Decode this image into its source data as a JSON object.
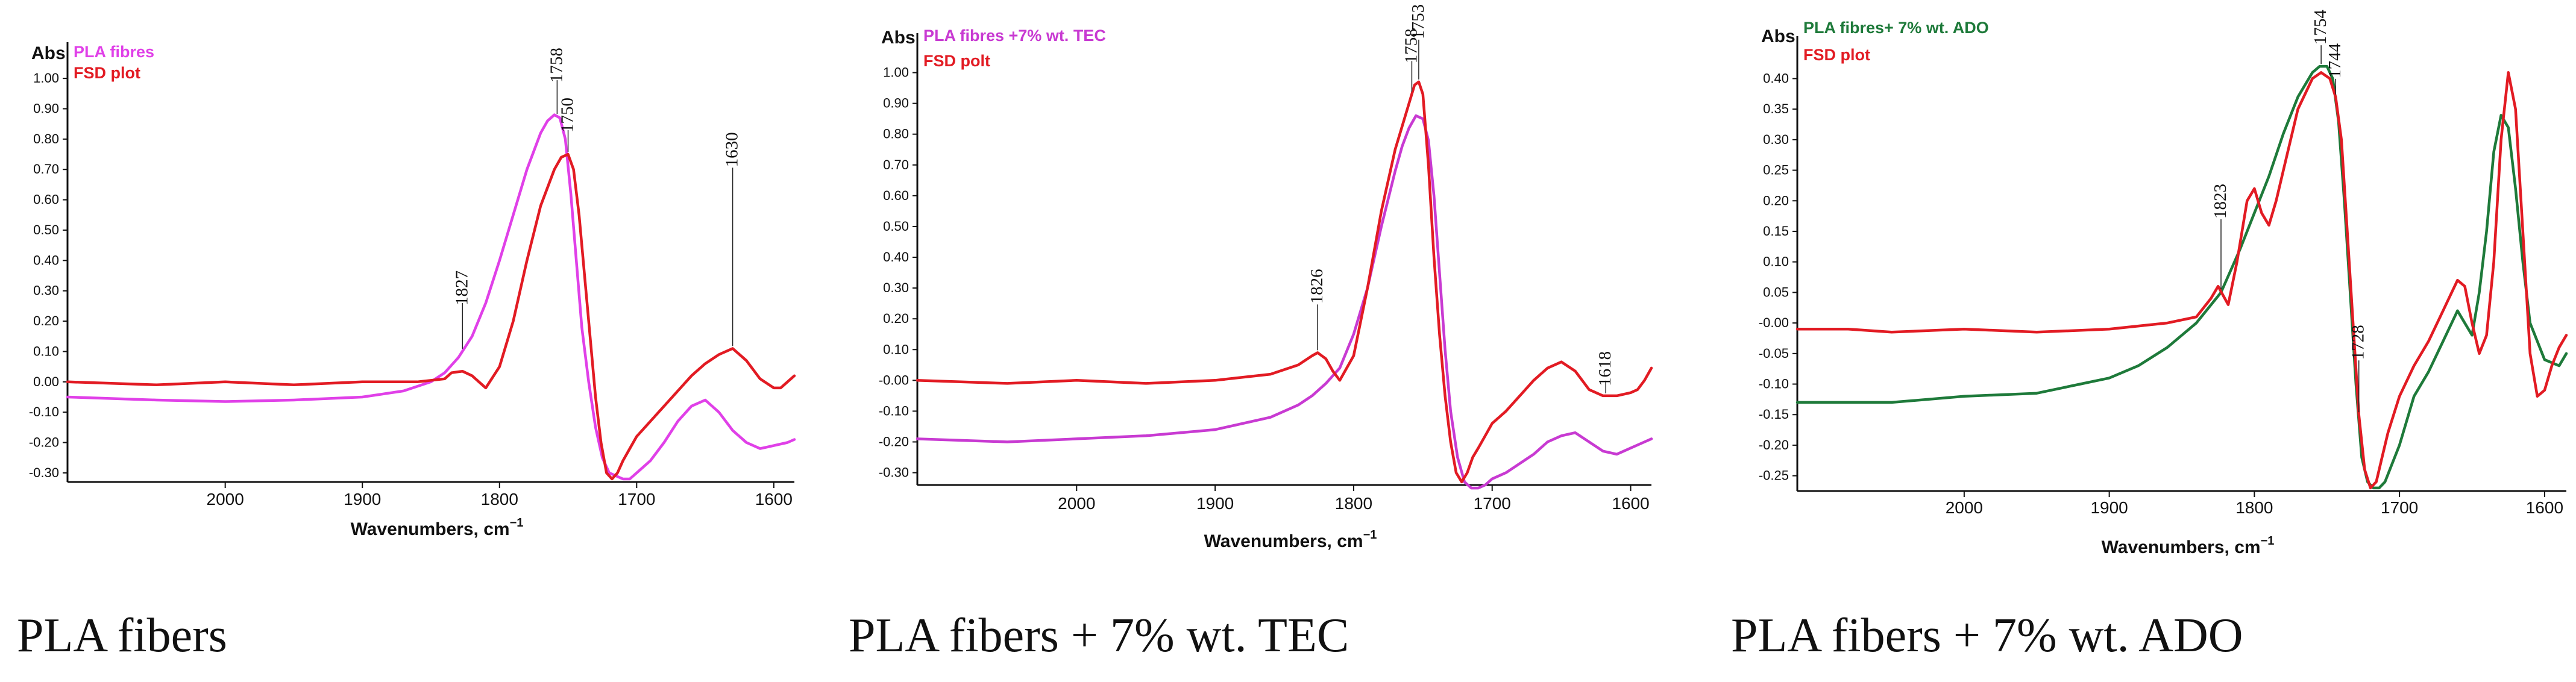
{
  "chart_data": [
    {
      "type": "line",
      "caption": "PLA fibers",
      "ylabel_short": "Abs",
      "xlabel": "Wavenumbers, cm",
      "xlabel_sup": "−1",
      "xlim": [
        2115,
        1585
      ],
      "ylim": [
        -0.33,
        1.04
      ],
      "xticks": [
        "2000",
        "1900",
        "1800",
        "1700",
        "1600"
      ],
      "yticks": [
        "1.00",
        "0.90",
        "0.80",
        "0.70",
        "0.60",
        "0.50",
        "0.40",
        "0.30",
        "0.20",
        "0.10",
        "0.00",
        "-0.10",
        "-0.20",
        "-0.30"
      ],
      "series": [
        {
          "name": "PLA fibres",
          "color": "#e040e8",
          "x": [
            2115,
            2050,
            2000,
            1950,
            1900,
            1870,
            1850,
            1840,
            1830,
            1820,
            1810,
            1800,
            1790,
            1780,
            1770,
            1765,
            1760,
            1756,
            1752,
            1748,
            1744,
            1740,
            1735,
            1730,
            1725,
            1720,
            1715,
            1710,
            1705,
            1700,
            1690,
            1680,
            1670,
            1660,
            1650,
            1640,
            1630,
            1620,
            1610,
            1600,
            1590,
            1585
          ],
          "y": [
            -0.05,
            -0.06,
            -0.065,
            -0.06,
            -0.05,
            -0.03,
            0.0,
            0.03,
            0.08,
            0.15,
            0.26,
            0.4,
            0.55,
            0.7,
            0.82,
            0.86,
            0.88,
            0.87,
            0.8,
            0.62,
            0.4,
            0.18,
            0.0,
            -0.15,
            -0.25,
            -0.3,
            -0.31,
            -0.32,
            -0.32,
            -0.3,
            -0.26,
            -0.2,
            -0.13,
            -0.08,
            -0.06,
            -0.1,
            -0.16,
            -0.2,
            -0.22,
            -0.21,
            -0.2,
            -0.19
          ]
        },
        {
          "name": "FSD plot",
          "color": "#e21b23",
          "x": [
            2115,
            2050,
            2000,
            1950,
            1900,
            1860,
            1840,
            1835,
            1827,
            1820,
            1815,
            1810,
            1800,
            1790,
            1780,
            1770,
            1760,
            1755,
            1750,
            1746,
            1742,
            1738,
            1734,
            1730,
            1726,
            1722,
            1718,
            1714,
            1710,
            1705,
            1700,
            1690,
            1680,
            1670,
            1660,
            1650,
            1640,
            1630,
            1620,
            1610,
            1600,
            1595,
            1590,
            1585
          ],
          "y": [
            0.0,
            -0.01,
            0.0,
            -0.01,
            0.0,
            0.0,
            0.01,
            0.03,
            0.035,
            0.02,
            0.0,
            -0.02,
            0.05,
            0.2,
            0.4,
            0.58,
            0.7,
            0.74,
            0.75,
            0.7,
            0.55,
            0.35,
            0.15,
            -0.05,
            -0.2,
            -0.3,
            -0.32,
            -0.3,
            -0.26,
            -0.22,
            -0.18,
            -0.13,
            -0.08,
            -0.03,
            0.02,
            0.06,
            0.09,
            0.11,
            0.07,
            0.01,
            -0.02,
            -0.02,
            0.0,
            0.02
          ]
        }
      ],
      "annotations": [
        {
          "label": "1758",
          "x": 1758
        },
        {
          "label": "1750",
          "x": 1750
        },
        {
          "label": "1630",
          "x": 1630
        },
        {
          "label": "1827",
          "x": 1827
        }
      ]
    },
    {
      "type": "line",
      "caption": "PLA fibers + 7% wt. TEC",
      "ylabel_short": "Abs",
      "xlabel": "Wavenumbers, cm",
      "xlabel_sup": "−1",
      "xlim": [
        2115,
        1585
      ],
      "ylim": [
        -0.34,
        1.05
      ],
      "xticks": [
        "2000",
        "1900",
        "1800",
        "1700",
        "1600"
      ],
      "yticks": [
        "1.00",
        "0.90",
        "0.80",
        "0.70",
        "0.60",
        "0.50",
        "0.40",
        "0.30",
        "0.20",
        "0.10",
        "-0.00",
        "-0.10",
        "-0.20",
        "-0.30"
      ],
      "series": [
        {
          "name": "PLA fibres +7% wt. TEC",
          "color": "#c83ad2",
          "x": [
            2115,
            2050,
            2000,
            1950,
            1900,
            1860,
            1840,
            1830,
            1820,
            1810,
            1800,
            1790,
            1780,
            1770,
            1765,
            1760,
            1755,
            1750,
            1746,
            1742,
            1738,
            1734,
            1730,
            1725,
            1720,
            1715,
            1710,
            1705,
            1700,
            1690,
            1680,
            1670,
            1660,
            1650,
            1640,
            1630,
            1620,
            1610,
            1600,
            1590,
            1585
          ],
          "y": [
            -0.19,
            -0.2,
            -0.19,
            -0.18,
            -0.16,
            -0.12,
            -0.08,
            -0.05,
            -0.01,
            0.04,
            0.15,
            0.3,
            0.5,
            0.68,
            0.76,
            0.82,
            0.86,
            0.85,
            0.78,
            0.6,
            0.35,
            0.1,
            -0.1,
            -0.25,
            -0.33,
            -0.35,
            -0.35,
            -0.34,
            -0.32,
            -0.3,
            -0.27,
            -0.24,
            -0.2,
            -0.18,
            -0.17,
            -0.2,
            -0.23,
            -0.24,
            -0.22,
            -0.2,
            -0.19
          ]
        },
        {
          "name": "FSD polt",
          "color": "#e21b23",
          "x": [
            2115,
            2050,
            2000,
            1950,
            1900,
            1860,
            1840,
            1830,
            1826,
            1820,
            1815,
            1810,
            1800,
            1790,
            1780,
            1770,
            1760,
            1756,
            1753,
            1750,
            1746,
            1742,
            1738,
            1734,
            1730,
            1726,
            1722,
            1718,
            1714,
            1710,
            1705,
            1700,
            1690,
            1680,
            1670,
            1660,
            1650,
            1640,
            1630,
            1620,
            1610,
            1600,
            1595,
            1590,
            1585
          ],
          "y": [
            0.0,
            -0.01,
            0.0,
            -0.01,
            0.0,
            0.02,
            0.05,
            0.08,
            0.09,
            0.07,
            0.03,
            0.0,
            0.08,
            0.3,
            0.55,
            0.75,
            0.9,
            0.96,
            0.97,
            0.93,
            0.7,
            0.4,
            0.15,
            -0.05,
            -0.2,
            -0.3,
            -0.33,
            -0.3,
            -0.25,
            -0.22,
            -0.18,
            -0.14,
            -0.1,
            -0.05,
            0.0,
            0.04,
            0.06,
            0.03,
            -0.03,
            -0.05,
            -0.05,
            -0.04,
            -0.03,
            0.0,
            0.04
          ]
        }
      ],
      "annotations": [
        {
          "label": "1758",
          "x": 1758
        },
        {
          "label": "1753",
          "x": 1753
        },
        {
          "label": "1826",
          "x": 1826
        },
        {
          "label": "1618",
          "x": 1618
        }
      ]
    },
    {
      "type": "line",
      "caption": "PLA fibers + 7% wt. ADO",
      "ylabel_short": "Abs",
      "xlabel": "Wavenumbers, cm",
      "xlabel_sup": "−1",
      "xlim": [
        2115,
        1585
      ],
      "ylim": [
        -0.275,
        0.43
      ],
      "xticks": [
        "2000",
        "1900",
        "1800",
        "1700",
        "1600"
      ],
      "yticks": [
        "0.40",
        "0.35",
        "0.30",
        "0.25",
        "0.20",
        "0.15",
        "0.10",
        "0.05",
        "-0.00",
        "-0.05",
        "-0.10",
        "-0.15",
        "-0.20",
        "-0.25"
      ],
      "series": [
        {
          "name": "PLA fibres+ 7% wt. ADO",
          "color": "#1e7a3a",
          "x": [
            2115,
            2080,
            2050,
            2000,
            1950,
            1920,
            1900,
            1880,
            1860,
            1840,
            1823,
            1810,
            1800,
            1790,
            1780,
            1770,
            1760,
            1755,
            1750,
            1746,
            1742,
            1738,
            1734,
            1730,
            1726,
            1722,
            1718,
            1714,
            1710,
            1700,
            1690,
            1680,
            1670,
            1660,
            1650,
            1645,
            1640,
            1635,
            1630,
            1625,
            1620,
            1615,
            1610,
            1600,
            1590,
            1585
          ],
          "y": [
            -0.13,
            -0.13,
            -0.13,
            -0.12,
            -0.115,
            -0.1,
            -0.09,
            -0.07,
            -0.04,
            0.0,
            0.05,
            0.12,
            0.18,
            0.24,
            0.31,
            0.37,
            0.41,
            0.42,
            0.42,
            0.4,
            0.33,
            0.2,
            0.05,
            -0.1,
            -0.22,
            -0.26,
            -0.27,
            -0.27,
            -0.26,
            -0.2,
            -0.12,
            -0.08,
            -0.03,
            0.02,
            -0.02,
            0.05,
            0.15,
            0.28,
            0.34,
            0.32,
            0.22,
            0.1,
            0.0,
            -0.06,
            -0.07,
            -0.05
          ]
        },
        {
          "name": "FSD plot",
          "color": "#e21b23",
          "x": [
            2115,
            2080,
            2050,
            2000,
            1950,
            1900,
            1860,
            1840,
            1830,
            1825,
            1818,
            1812,
            1805,
            1800,
            1795,
            1790,
            1785,
            1780,
            1770,
            1760,
            1754,
            1748,
            1744,
            1740,
            1736,
            1732,
            1728,
            1724,
            1720,
            1716,
            1712,
            1708,
            1704,
            1700,
            1690,
            1680,
            1670,
            1660,
            1655,
            1650,
            1645,
            1640,
            1635,
            1630,
            1625,
            1620,
            1615,
            1610,
            1605,
            1600,
            1595,
            1590,
            1585
          ],
          "y": [
            -0.01,
            -0.01,
            -0.015,
            -0.01,
            -0.015,
            -0.01,
            0.0,
            0.01,
            0.04,
            0.06,
            0.03,
            0.1,
            0.2,
            0.22,
            0.18,
            0.16,
            0.2,
            0.25,
            0.35,
            0.4,
            0.41,
            0.4,
            0.37,
            0.3,
            0.15,
            0.0,
            -0.15,
            -0.24,
            -0.27,
            -0.26,
            -0.22,
            -0.18,
            -0.15,
            -0.12,
            -0.07,
            -0.03,
            0.02,
            0.07,
            0.06,
            0.0,
            -0.05,
            -0.02,
            0.1,
            0.3,
            0.41,
            0.35,
            0.15,
            -0.05,
            -0.12,
            -0.11,
            -0.07,
            -0.04,
            -0.02
          ]
        }
      ],
      "annotations": [
        {
          "label": "1754",
          "x": 1754
        },
        {
          "label": "1744",
          "x": 1744
        },
        {
          "label": "1728",
          "x": 1728
        },
        {
          "label": "1823",
          "x": 1823
        }
      ]
    }
  ]
}
